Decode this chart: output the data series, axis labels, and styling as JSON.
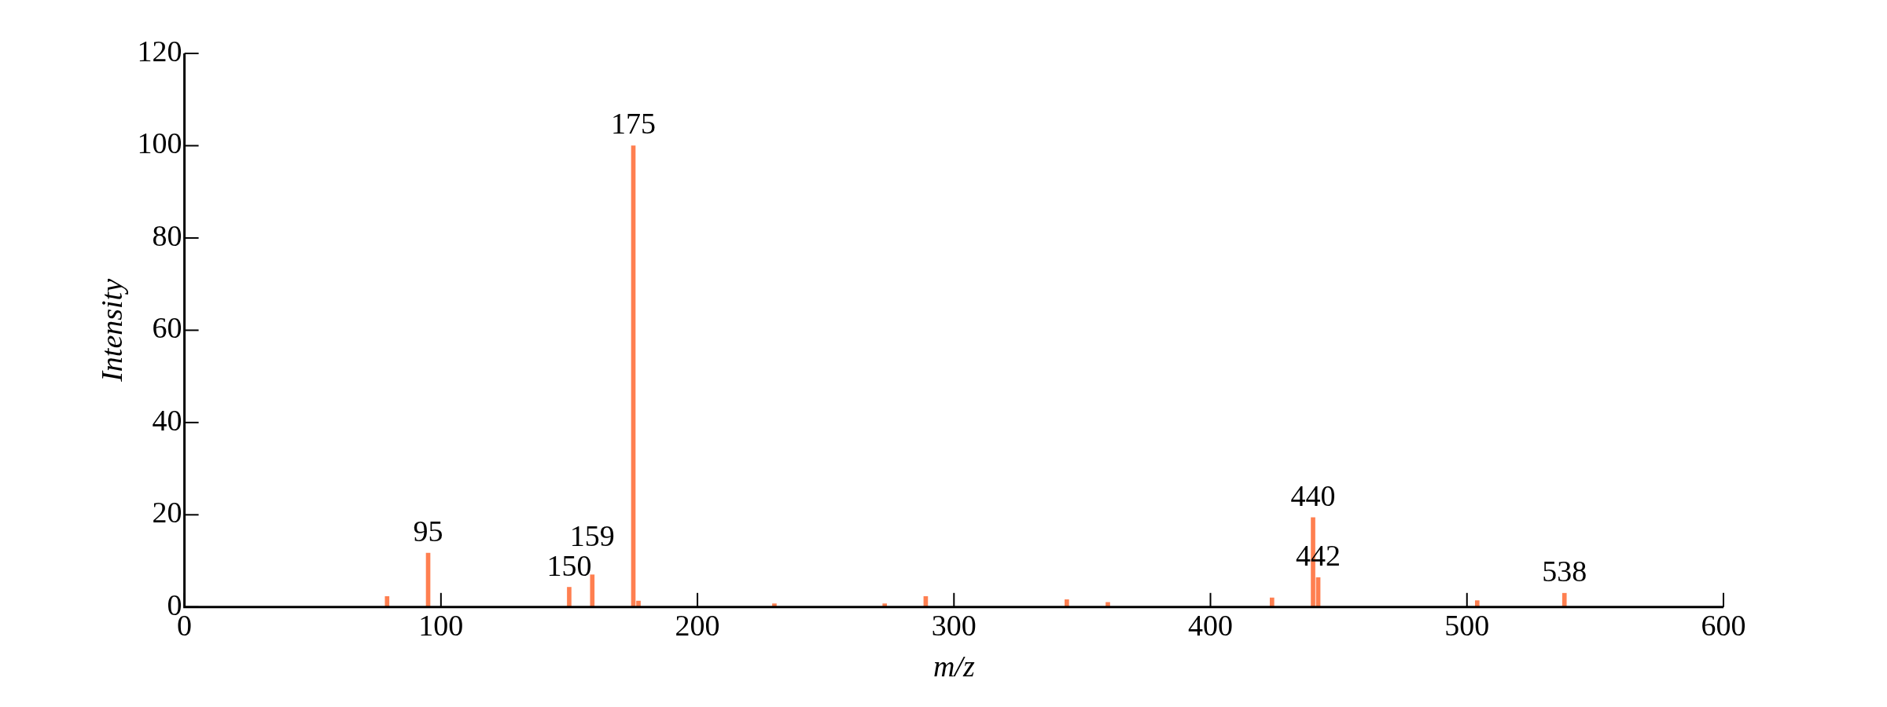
{
  "chart_data": {
    "type": "bar",
    "xlabel": "m/z",
    "ylabel": "Intensity",
    "x": [
      79,
      95,
      150,
      159,
      175,
      177,
      230,
      273,
      289,
      344,
      360,
      424,
      440,
      442,
      504,
      538
    ],
    "values": [
      2.3,
      11.7,
      4.3,
      7.0,
      100,
      1.3,
      0.7,
      0.7,
      2.3,
      1.6,
      1.0,
      2.0,
      19.4,
      6.4,
      1.4,
      3.0
    ],
    "color": "#ff7f50",
    "xlim": [
      0,
      600
    ],
    "xticks": [
      0,
      100,
      200,
      300,
      400,
      500,
      600
    ],
    "ylim": [
      0,
      120
    ],
    "yticks": [
      0,
      20,
      40,
      60,
      80,
      100,
      120
    ],
    "grid": false,
    "legend": false,
    "annotations": [
      {
        "text": "95",
        "x": 95,
        "y": 11.7
      },
      {
        "text": "150",
        "x": 150,
        "y": 4.3
      },
      {
        "text": "159",
        "x": 159,
        "y": 7.0
      },
      {
        "text": "175",
        "x": 175,
        "y": 100
      },
      {
        "text": "440",
        "x": 440,
        "y": 19.4
      },
      {
        "text": "442",
        "x": 442,
        "y": 6.4
      },
      {
        "text": "538",
        "x": 538,
        "y": 3.0
      }
    ]
  }
}
